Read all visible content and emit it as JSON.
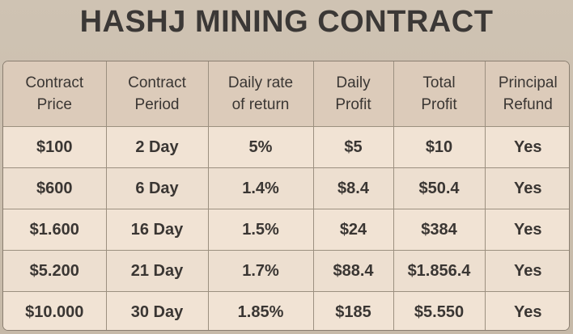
{
  "title": "HASHJ MINING CONTRACT",
  "table": {
    "headers": [
      [
        "Contract",
        "Price"
      ],
      [
        "Contract",
        "Period"
      ],
      [
        "Daily rate",
        "of return"
      ],
      [
        "Daily",
        "Profit"
      ],
      [
        "Total",
        "Profit"
      ],
      [
        "Principal",
        "Refund"
      ]
    ],
    "rows": [
      [
        "$100",
        "2 Day",
        "5%",
        "$5",
        "$10",
        "Yes"
      ],
      [
        "$600",
        "6 Day",
        "1.4%",
        "$8.4",
        "$50.4",
        "Yes"
      ],
      [
        "$1.600",
        "16 Day",
        "1.5%",
        "$24",
        "$384",
        "Yes"
      ],
      [
        "$5.200",
        "21 Day",
        "1.7%",
        "$88.4",
        "$1.856.4",
        "Yes"
      ],
      [
        "$10.000",
        "30 Day",
        "1.85%",
        "$185",
        "$5.550",
        "Yes"
      ]
    ]
  }
}
